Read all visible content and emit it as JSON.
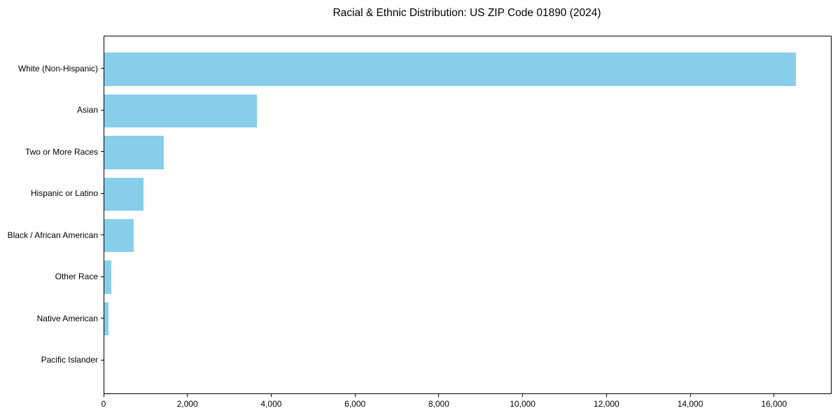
{
  "title": "Racial & Ethnic Distribution: US ZIP Code 01890 (2024)",
  "colors": {
    "bar": "#87CEEB",
    "spine": "#000000",
    "text": "#000000",
    "background": "#ffffff"
  },
  "chart_data": {
    "type": "bar",
    "orientation": "horizontal",
    "title": "Racial & Ethnic Distribution: US ZIP Code 01890 (2024)",
    "categories": [
      "White (Non-Hispanic)",
      "Asian",
      "Two or More Races",
      "Hispanic or Latino",
      "Black / African American",
      "Other Race",
      "Native American",
      "Pacific Islander"
    ],
    "values": [
      16500,
      3650,
      1420,
      930,
      695,
      170,
      95,
      0
    ],
    "xlabel": "",
    "ylabel": "",
    "xlim": [
      0,
      17340
    ],
    "xticks": [
      0,
      2000,
      4000,
      6000,
      8000,
      10000,
      12000,
      14000,
      16000
    ],
    "xtick_labels": [
      "0",
      "2,000",
      "4,000",
      "6,000",
      "8,000",
      "10,000",
      "12,000",
      "14,000",
      "16,000"
    ],
    "bar_color": "#87CEEB",
    "bar_height_fraction": 0.8,
    "grid": false,
    "legend": null
  }
}
